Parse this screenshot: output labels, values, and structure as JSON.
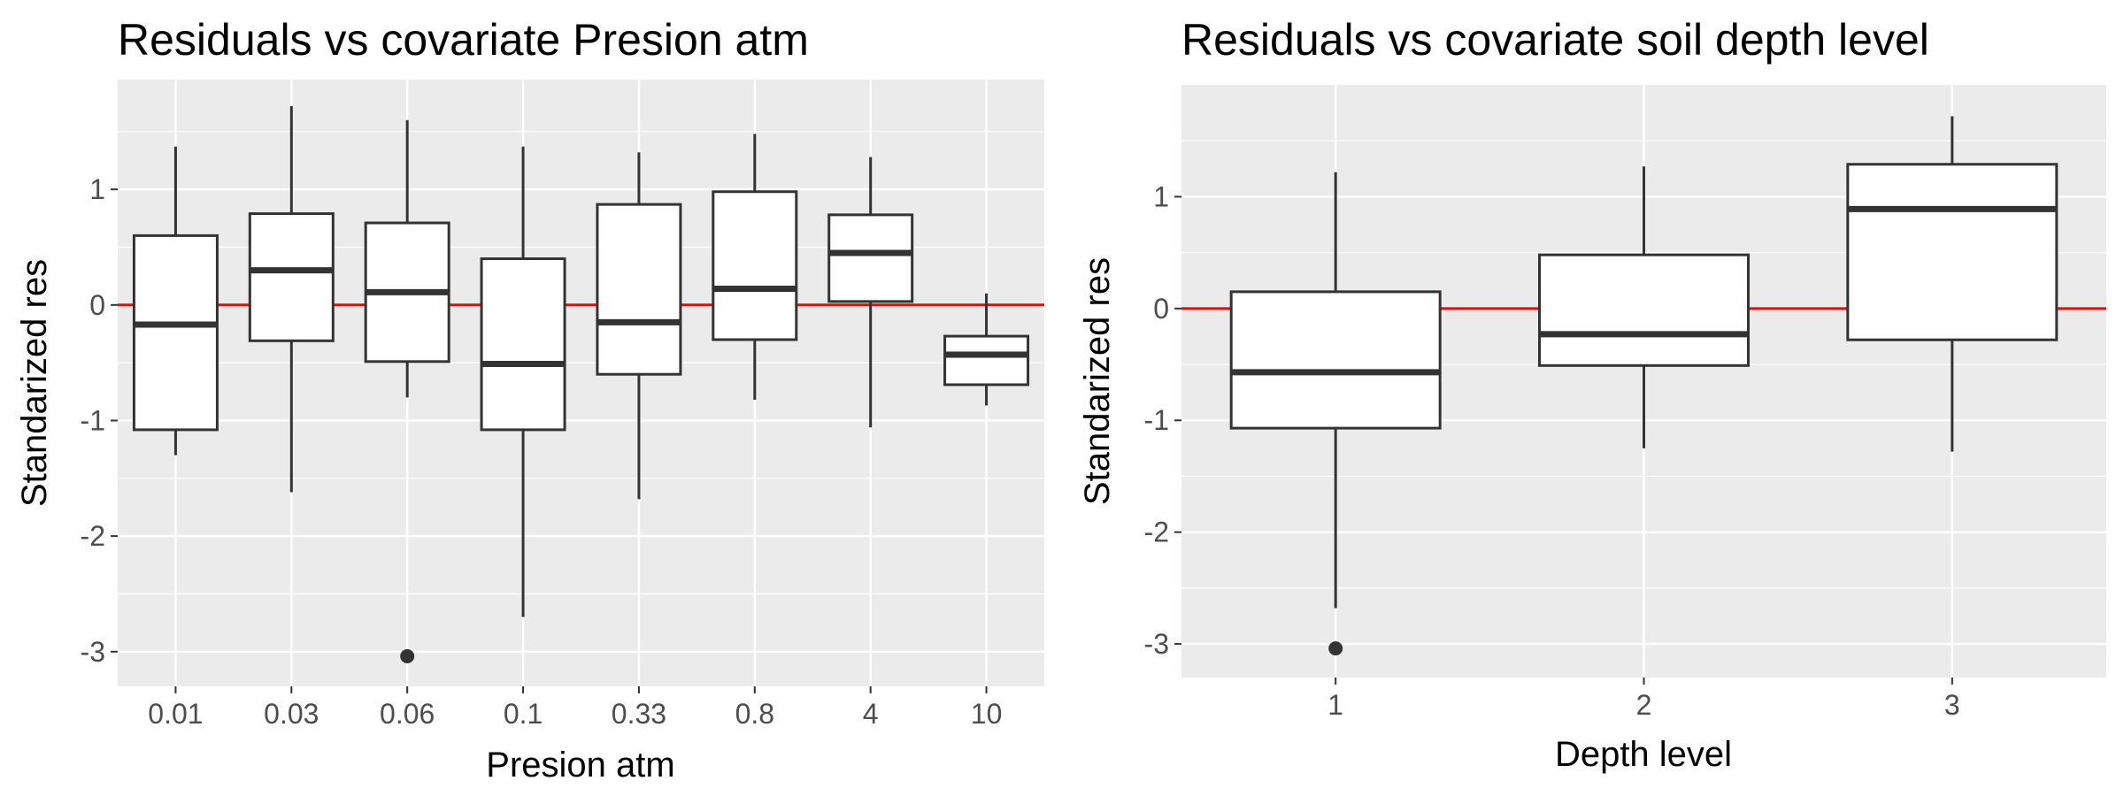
{
  "chart_data": [
    {
      "type": "box",
      "title": "Residuals vs covariate Presion atm",
      "xlabel": "Presion atm",
      "ylabel": "Standarized res",
      "ylim": [
        -3.3,
        1.95
      ],
      "yticks": [
        -3,
        -2,
        -1,
        0,
        1
      ],
      "ytick_labels": [
        "-3",
        "-2",
        "-1",
        "0",
        "1"
      ],
      "categories": [
        "0.01",
        "0.03",
        "0.06",
        "0.1",
        "0.33",
        "0.8",
        "4",
        "10"
      ],
      "boxes": [
        {
          "lower_whisker": -1.3,
          "q1": -1.08,
          "median": -0.17,
          "q3": 0.6,
          "upper_whisker": 1.37,
          "outliers": []
        },
        {
          "lower_whisker": -1.62,
          "q1": -0.31,
          "median": 0.3,
          "q3": 0.79,
          "upper_whisker": 1.72,
          "outliers": []
        },
        {
          "lower_whisker": -0.8,
          "q1": -0.49,
          "median": 0.11,
          "q3": 0.71,
          "upper_whisker": 1.6,
          "outliers": [
            -3.04
          ]
        },
        {
          "lower_whisker": -2.7,
          "q1": -1.08,
          "median": -0.51,
          "q3": 0.4,
          "upper_whisker": 1.37,
          "outliers": []
        },
        {
          "lower_whisker": -1.68,
          "q1": -0.6,
          "median": -0.15,
          "q3": 0.87,
          "upper_whisker": 1.32,
          "outliers": []
        },
        {
          "lower_whisker": -0.82,
          "q1": -0.3,
          "median": 0.14,
          "q3": 0.98,
          "upper_whisker": 1.48,
          "outliers": []
        },
        {
          "lower_whisker": -1.06,
          "q1": 0.03,
          "median": 0.45,
          "q3": 0.78,
          "upper_whisker": 1.28,
          "outliers": []
        },
        {
          "lower_whisker": -0.87,
          "q1": -0.69,
          "median": -0.43,
          "q3": -0.27,
          "upper_whisker": 0.1,
          "outliers": []
        }
      ],
      "reference_line": {
        "y": 0,
        "color": "#ff0000"
      },
      "grid": true,
      "panel_background": "#ebebeb",
      "box_fill": "#ffffff",
      "box_stroke": "#333333",
      "outlier_color": "#333333"
    },
    {
      "type": "box",
      "title": "Residuals vs covariate soil depth level",
      "xlabel": "Depth level",
      "ylabel": "Standarized res",
      "ylim": [
        -3.3,
        2.0
      ],
      "yticks": [
        -3,
        -2,
        -1,
        0,
        1
      ],
      "ytick_labels": [
        "-3",
        "-2",
        "-1",
        "0",
        "1"
      ],
      "categories": [
        "1",
        "2",
        "3"
      ],
      "boxes": [
        {
          "lower_whisker": -2.68,
          "q1": -1.07,
          "median": -0.57,
          "q3": 0.15,
          "upper_whisker": 1.22,
          "outliers": [
            -3.04
          ]
        },
        {
          "lower_whisker": -1.25,
          "q1": -0.51,
          "median": -0.23,
          "q3": 0.48,
          "upper_whisker": 1.27,
          "outliers": []
        },
        {
          "lower_whisker": -1.28,
          "q1": -0.28,
          "median": 0.89,
          "q3": 1.29,
          "upper_whisker": 1.72,
          "outliers": []
        }
      ],
      "reference_line": {
        "y": 0,
        "color": "#ff0000"
      },
      "grid": true,
      "panel_background": "#ebebeb",
      "box_fill": "#ffffff",
      "box_stroke": "#333333",
      "outlier_color": "#333333"
    }
  ]
}
